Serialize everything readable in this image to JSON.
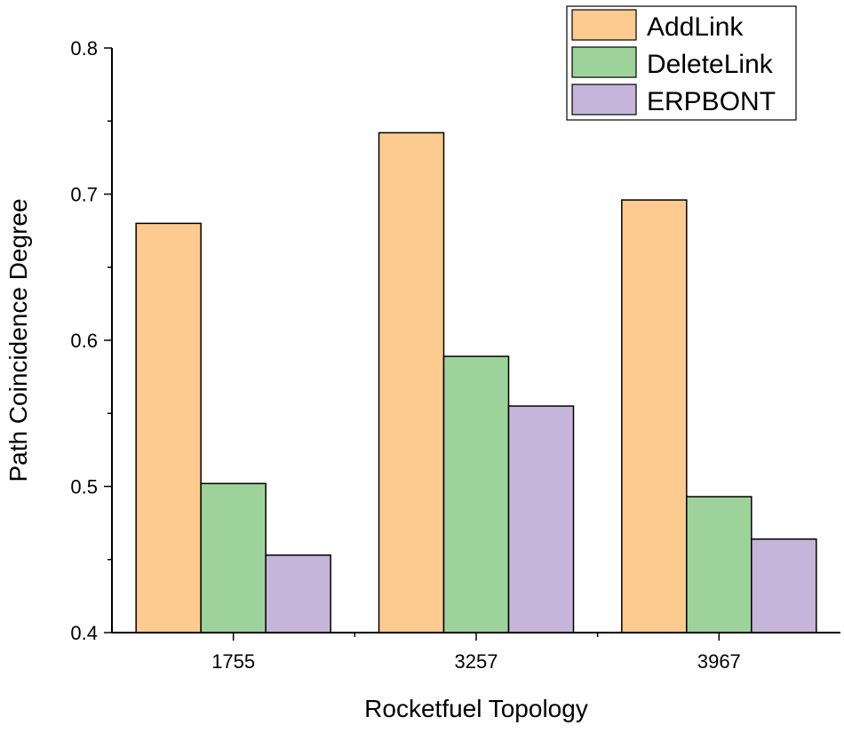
{
  "chart_data": {
    "type": "bar",
    "title": "",
    "xlabel": "Rocketfuel Topology",
    "ylabel": "Path Coincidence Degree",
    "ylim": [
      0.4,
      0.8
    ],
    "y_major_ticks": [
      0.4,
      0.5,
      0.6,
      0.7,
      0.8
    ],
    "y_minor_step": 0.05,
    "y_tick_labels": [
      "0.4",
      "0.5",
      "0.6",
      "0.7",
      "0.8"
    ],
    "categories": [
      "1755",
      "3257",
      "3967"
    ],
    "series": [
      {
        "name": "AddLink",
        "color": "#fdcb8f",
        "values": [
          0.68,
          0.742,
          0.696
        ]
      },
      {
        "name": "DeleteLink",
        "color": "#9dd39a",
        "values": [
          0.502,
          0.589,
          0.493
        ]
      },
      {
        "name": "ERPBONT",
        "color": "#c6b5da",
        "values": [
          0.453,
          0.555,
          0.464
        ]
      }
    ],
    "legend_position": "top-right",
    "grid": false
  }
}
